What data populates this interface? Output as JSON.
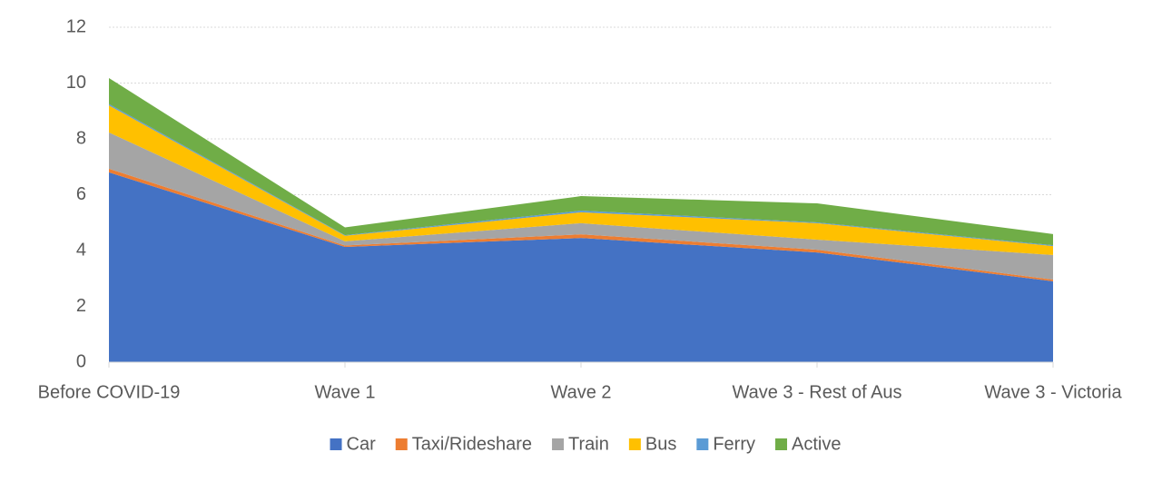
{
  "chart_data": {
    "type": "stacked-area",
    "categories": [
      "Before COVID-19",
      "Wave 1",
      "Wave 2",
      "Wave 3 - Rest of Aus",
      "Wave 3 - Victoria"
    ],
    "series": [
      {
        "name": "Car",
        "color": "#4472c4",
        "values": [
          6.8,
          4.13,
          4.45,
          3.93,
          2.9
        ]
      },
      {
        "name": "Taxi/Rideshare",
        "color": "#ed7d31",
        "values": [
          0.13,
          0.05,
          0.13,
          0.1,
          0.06
        ]
      },
      {
        "name": "Train",
        "color": "#a5a5a5",
        "values": [
          1.3,
          0.15,
          0.4,
          0.36,
          0.88
        ]
      },
      {
        "name": "Bus",
        "color": "#ffc000",
        "values": [
          0.97,
          0.2,
          0.39,
          0.59,
          0.32
        ]
      },
      {
        "name": "Ferry",
        "color": "#5b9bd5",
        "values": [
          0.05,
          0.02,
          0.06,
          0.03,
          0.03
        ]
      },
      {
        "name": "Active",
        "color": "#70ad47",
        "values": [
          0.93,
          0.28,
          0.52,
          0.68,
          0.4
        ]
      }
    ],
    "ylim": [
      0,
      12
    ],
    "yticks": [
      0,
      2,
      4,
      6,
      8,
      10,
      12
    ],
    "grid": true,
    "legend": "bottom"
  }
}
